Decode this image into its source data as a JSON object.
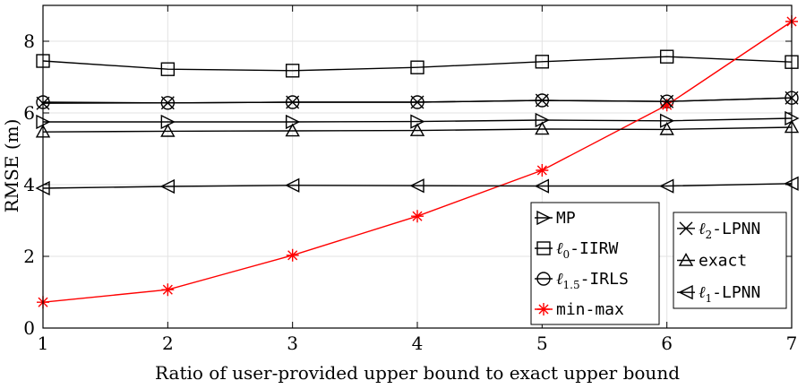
{
  "chart_data": {
    "type": "line",
    "title": "",
    "xlabel": "Ratio of user-provided upper bound to exact upper bound",
    "ylabel": "RMSE (m)",
    "xlim": [
      1,
      7
    ],
    "ylim": [
      0,
      9
    ],
    "x_ticks": [
      1,
      2,
      3,
      4,
      5,
      6,
      7
    ],
    "y_ticks": [
      0,
      2,
      4,
      6,
      8
    ],
    "grid": "on",
    "x": [
      1,
      2,
      3,
      4,
      5,
      6,
      7
    ],
    "series": [
      {
        "name": "MP",
        "marker": "triangle-right",
        "color": "#000000",
        "values": [
          5.75,
          5.75,
          5.75,
          5.76,
          5.8,
          5.78,
          5.85
        ]
      },
      {
        "name": "ℓ0-IIRW",
        "marker": "square",
        "color": "#000000",
        "values": [
          7.45,
          7.22,
          7.18,
          7.27,
          7.43,
          7.57,
          7.42
        ]
      },
      {
        "name": "ℓ1.5-IRLS",
        "marker": "circle",
        "color": "#000000",
        "values": [
          6.3,
          6.28,
          6.3,
          6.3,
          6.35,
          6.32,
          6.42
        ]
      },
      {
        "name": "min-max",
        "marker": "asterisk",
        "color": "#ff0000",
        "values": [
          0.72,
          1.07,
          2.03,
          3.12,
          4.4,
          6.22,
          8.55
        ]
      },
      {
        "name": "ℓ2-LPNN",
        "marker": "x-cross",
        "color": "#000000",
        "values": [
          6.27,
          6.28,
          6.3,
          6.3,
          6.35,
          6.32,
          6.42
        ]
      },
      {
        "name": "exact",
        "marker": "triangle-up",
        "color": "#000000",
        "values": [
          5.47,
          5.49,
          5.5,
          5.51,
          5.55,
          5.54,
          5.6
        ]
      },
      {
        "name": "ℓ1-LPNN",
        "marker": "triangle-left",
        "color": "#000000",
        "values": [
          3.9,
          3.95,
          3.98,
          3.97,
          3.96,
          3.96,
          4.03
        ]
      }
    ],
    "legends": [
      {
        "placement": "bottom-center",
        "entries": [
          {
            "series": 0,
            "label": "MP"
          },
          {
            "series": 1,
            "label": "-IIRW",
            "prefix": "ℓ",
            "sub": "0"
          },
          {
            "series": 2,
            "label": "-IRLS",
            "prefix": "ℓ",
            "sub": "1.5"
          },
          {
            "series": 3,
            "label": "min-max"
          }
        ]
      },
      {
        "placement": "bottom-right",
        "entries": [
          {
            "series": 4,
            "label": "-LPNN",
            "prefix": "ℓ",
            "sub": "2"
          },
          {
            "series": 5,
            "label": "exact"
          },
          {
            "series": 6,
            "label": "-LPNN",
            "prefix": "ℓ",
            "sub": "1"
          }
        ]
      }
    ]
  }
}
